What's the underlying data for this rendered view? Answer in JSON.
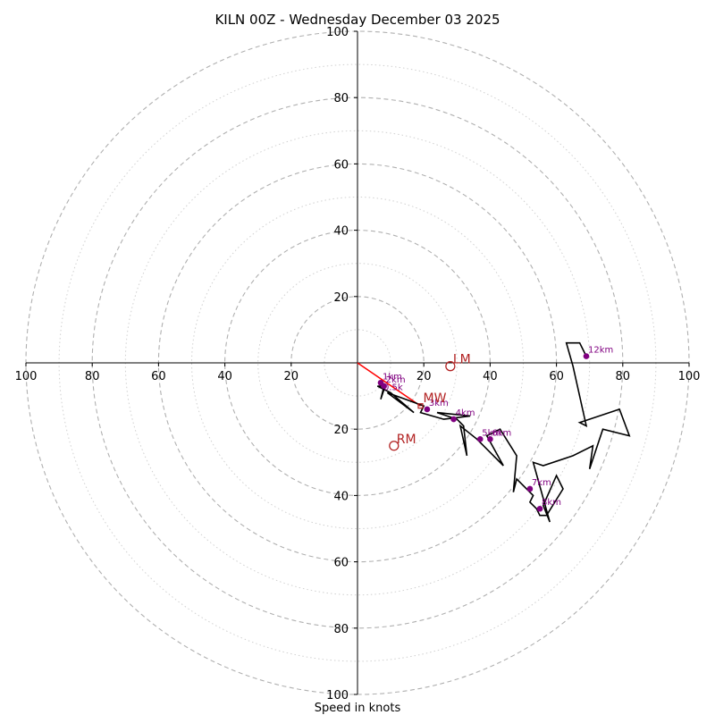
{
  "chart_data": {
    "type": "hodograph",
    "title": "KILN 00Z - Wednesday December 03 2025",
    "xlabel": "Speed in knots",
    "range": 100,
    "major_rings": [
      20,
      40,
      60,
      80,
      100
    ],
    "minor_rings": [
      10,
      30,
      50,
      70,
      90
    ],
    "x_tick_labels": [
      "100",
      "80",
      "60",
      "40",
      "20",
      "20",
      "40",
      "60",
      "80",
      "100"
    ],
    "x_tick_values": [
      -100,
      -80,
      -60,
      -40,
      -20,
      20,
      40,
      60,
      80,
      100
    ],
    "y_tick_labels": [
      "100",
      "80",
      "60",
      "40",
      "20",
      "20",
      "40",
      "60",
      "80",
      "100"
    ],
    "y_tick_values": [
      100,
      80,
      60,
      40,
      20,
      -20,
      -40,
      -60,
      -80,
      -100
    ],
    "trace": [
      [
        8,
        -8
      ],
      [
        7,
        -11
      ],
      [
        8,
        -7
      ],
      [
        6,
        -7
      ],
      [
        10,
        -9
      ],
      [
        17,
        -15
      ],
      [
        9,
        -9
      ],
      [
        20,
        -13
      ],
      [
        19,
        -15
      ],
      [
        26,
        -17
      ],
      [
        34,
        -16
      ],
      [
        24,
        -15
      ],
      [
        30,
        -17
      ],
      [
        32,
        -19
      ],
      [
        33,
        -28
      ],
      [
        31,
        -19
      ],
      [
        36,
        -23
      ],
      [
        44,
        -31
      ],
      [
        39,
        -22
      ],
      [
        43,
        -20
      ],
      [
        48,
        -28
      ],
      [
        47,
        -39
      ],
      [
        48,
        -35
      ],
      [
        53,
        -40
      ],
      [
        52,
        -42
      ],
      [
        54,
        -44
      ],
      [
        55,
        -46
      ],
      [
        57,
        -46
      ],
      [
        62,
        -38
      ],
      [
        60,
        -34
      ],
      [
        56,
        -43
      ],
      [
        58,
        -48
      ],
      [
        53,
        -30
      ],
      [
        56,
        -31
      ],
      [
        65,
        -28
      ],
      [
        71,
        -25
      ],
      [
        70,
        -32
      ],
      [
        74,
        -20
      ],
      [
        82,
        -22
      ],
      [
        79,
        -14
      ],
      [
        67,
        -18
      ],
      [
        69,
        -19
      ],
      [
        65,
        -1
      ],
      [
        63,
        6
      ],
      [
        67,
        6
      ],
      [
        69,
        2
      ]
    ],
    "height_markers": [
      {
        "label": "1km",
        "u": 7,
        "v": -6
      },
      {
        "label": "2km",
        "u": 8,
        "v": -7
      },
      {
        "label": "3km",
        "u": 21,
        "v": -14
      },
      {
        "label": "4km",
        "u": 29,
        "v": -17
      },
      {
        "label": "5km",
        "u": 37,
        "v": -23
      },
      {
        "label": "6km",
        "u": 40,
        "v": -23
      },
      {
        "label": "7km",
        "u": 52,
        "v": -38
      },
      {
        "label": "8km",
        "u": 55,
        "v": -44
      },
      {
        "label": "12km",
        "u": 69,
        "v": 2
      }
    ],
    "extra_label": {
      "label": "0.5k",
      "u": 7,
      "v": -8
    },
    "storm_motions": [
      {
        "label": "LM",
        "u": 28,
        "v": -1
      },
      {
        "label": "RM",
        "u": 11,
        "v": -25
      }
    ],
    "mean_wind": {
      "label": "MW",
      "u": 19,
      "v": -13
    },
    "colors": {
      "trace": "#000000",
      "markers": "#800080",
      "motion": "#b22222",
      "vector": "#ff0000",
      "grid": "#b0b0b0"
    }
  }
}
